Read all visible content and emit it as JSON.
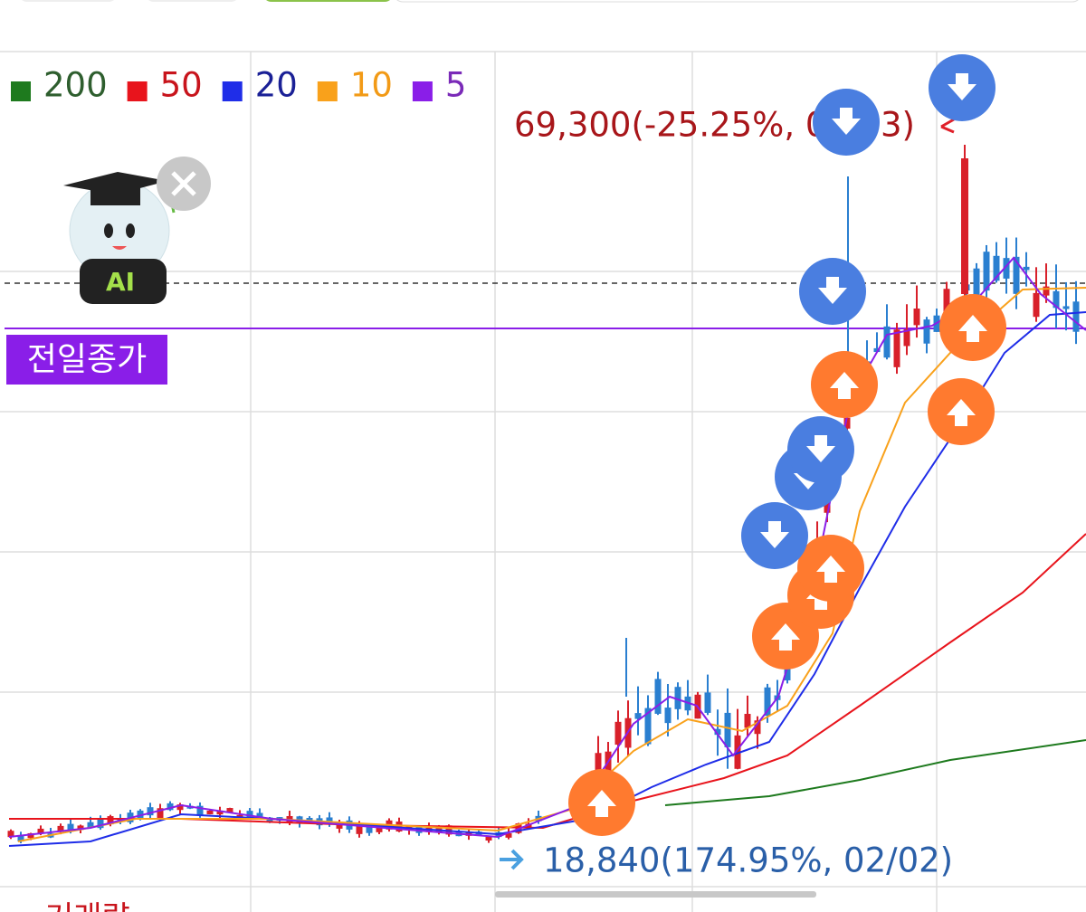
{
  "legend": [
    {
      "label": "200",
      "color": "#1e7a1e",
      "text_color": "#2e5e2e"
    },
    {
      "label": "50",
      "color": "#e8141c",
      "text_color": "#c8141c"
    },
    {
      "label": "20",
      "color": "#1f2de8",
      "text_color": "#1a2096"
    },
    {
      "label": "10",
      "color": "#f9a11b",
      "text_color": "#f29a16"
    },
    {
      "label": "5",
      "color": "#8a1ee8",
      "text_color": "#7a2ab8"
    }
  ],
  "high_label": "69,300(-25.25%, 02/03)",
  "low_label": "18,840(174.95%, 02/02)",
  "prev_close_label": "전일종가",
  "ai_badge": "AI",
  "volume_label": "거래량"
}
